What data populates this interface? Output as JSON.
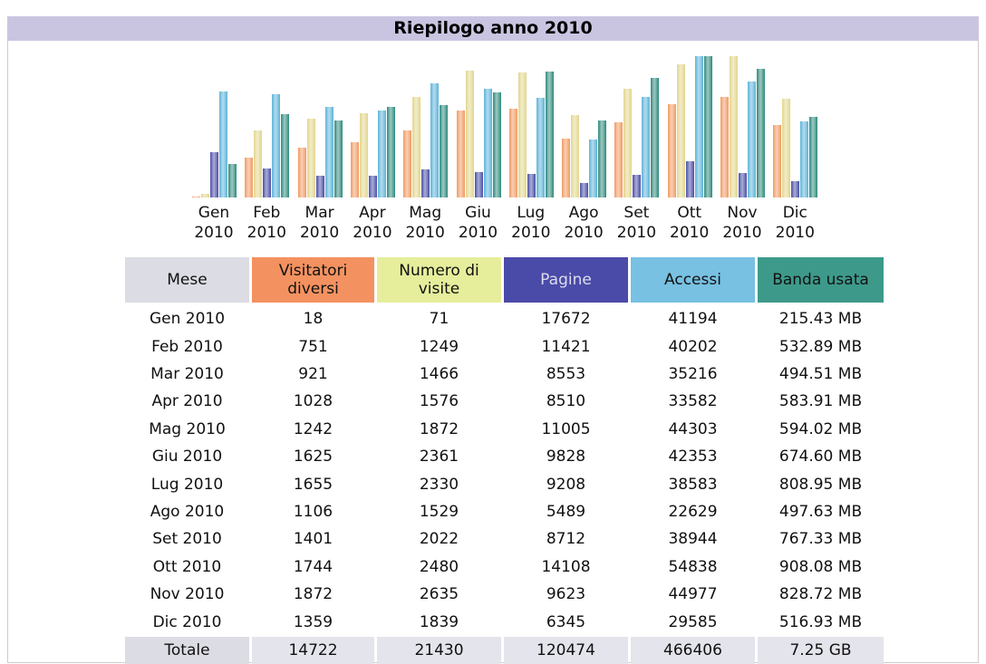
{
  "title": "Riepilogo anno 2010",
  "chart_data": {
    "type": "bar",
    "categories": [
      "Gen 2010",
      "Feb 2010",
      "Mar 2010",
      "Apr 2010",
      "Mag 2010",
      "Giu 2010",
      "Lug 2010",
      "Ago 2010",
      "Set 2010",
      "Ott 2010",
      "Nov 2010",
      "Dic 2010"
    ],
    "series": [
      {
        "name": "Visitatori diversi",
        "color": "#f29a62",
        "values": [
          18,
          751,
          921,
          1028,
          1242,
          1625,
          1655,
          1106,
          1401,
          1744,
          1872,
          1359
        ]
      },
      {
        "name": "Numero di visite",
        "color": "#e2d68e",
        "values": [
          71,
          1249,
          1466,
          1576,
          1872,
          2361,
          2330,
          1529,
          2022,
          2480,
          2635,
          1839
        ]
      },
      {
        "name": "Pagine",
        "color": "#4a4fa6",
        "values": [
          17672,
          11421,
          8553,
          8510,
          11005,
          9828,
          9208,
          5489,
          8712,
          14108,
          9623,
          6345
        ]
      },
      {
        "name": "Accessi",
        "color": "#5db3d8",
        "values": [
          41194,
          40202,
          35216,
          33582,
          44303,
          42353,
          38583,
          22629,
          38944,
          54838,
          44977,
          29585
        ]
      },
      {
        "name": "Banda usata",
        "color": "#2f8a7d",
        "values": [
          215.43,
          532.89,
          494.51,
          583.91,
          594.02,
          674.6,
          808.95,
          497.63,
          767.33,
          908.08,
          828.72,
          516.93
        ],
        "value_labels": [
          "215.43 MB",
          "532.89 MB",
          "494.51 MB",
          "583.91 MB",
          "594.02 MB",
          "674.60 MB",
          "808.95 MB",
          "497.63 MB",
          "767.33 MB",
          "908.08 MB",
          "828.72 MB",
          "516.93 MB"
        ]
      }
    ]
  },
  "table": {
    "month_header": "Mese",
    "header_colors": [
      "#dcdce4",
      "#f39260",
      "#e6ee9c",
      "#4a4aa8",
      "#78c1e2",
      "#3d9a8b"
    ],
    "total_label": "Totale",
    "totals": [
      14722,
      21430,
      120474,
      466406,
      "7.25 GB"
    ]
  }
}
